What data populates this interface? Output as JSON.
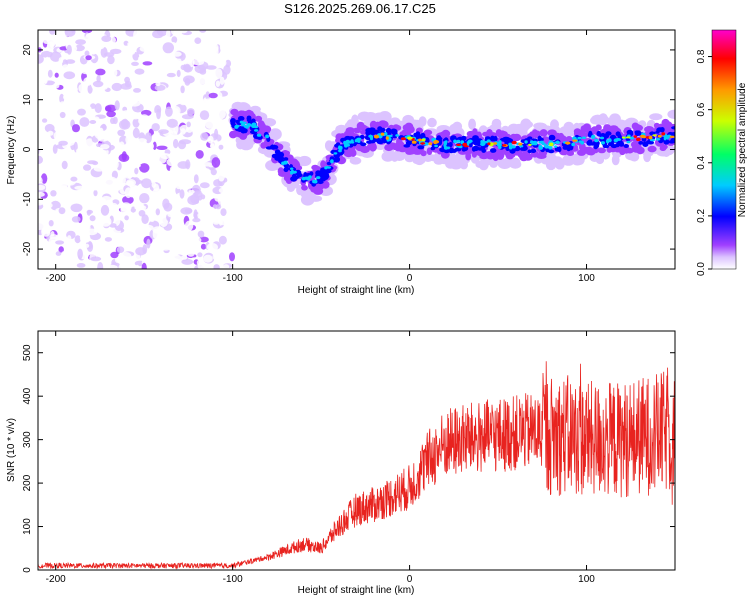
{
  "title": "S126.2025.269.06.17.C25",
  "chart_data": [
    {
      "type": "heatmap",
      "xlabel": "Height of straight line (km)",
      "ylabel": "Frequency (Hz)",
      "xlim": [
        -210,
        150
      ],
      "ylim": [
        -24,
        24
      ],
      "xticks": [
        -200,
        -100,
        0,
        100
      ],
      "yticks": [
        -20,
        -10,
        0,
        10,
        20
      ],
      "colorbar": {
        "label": "Normalized spectral amplitude",
        "range": [
          0.0,
          0.9
        ],
        "ticks": [
          "0.0",
          "0.2",
          "0.4",
          "0.6",
          "0.8"
        ],
        "colors": [
          "#ffffff",
          "#dcc3ff",
          "#a040ff",
          "#0000ff",
          "#00ccff",
          "#00ff66",
          "#ccff00",
          "#ff9900",
          "#ff0000",
          "#ff00cc"
        ]
      },
      "ridge": {
        "x": [
          -100,
          -90,
          -80,
          -75,
          -70,
          -65,
          -60,
          -55,
          -50,
          -45,
          -40,
          -30,
          -20,
          0,
          20,
          40,
          60,
          80,
          100,
          120,
          150
        ],
        "y": [
          5,
          5,
          2,
          -1,
          -3,
          -5,
          -6,
          -6,
          -6,
          -3,
          0,
          2,
          3,
          2,
          1,
          1,
          1,
          1,
          2,
          2,
          3
        ]
      },
      "noise_region_x": [
        -210,
        -100
      ]
    },
    {
      "type": "line",
      "xlabel": "Height of straight line (km)",
      "ylabel": "SNR (10 * v/v)",
      "xlim": [
        -210,
        150
      ],
      "ylim": [
        0,
        550
      ],
      "xticks": [
        -200,
        -100,
        0,
        100
      ],
      "yticks": [
        0,
        100,
        200,
        300,
        400,
        500
      ],
      "color": "#e8231f",
      "envelope": {
        "x": [
          -210,
          -150,
          -100,
          -80,
          -60,
          -50,
          -40,
          -30,
          -20,
          -10,
          0,
          10,
          20,
          30,
          50,
          70,
          80,
          90,
          100,
          120,
          150
        ],
        "y": [
          10,
          10,
          10,
          30,
          60,
          50,
          100,
          140,
          150,
          170,
          190,
          250,
          290,
          300,
          310,
          320,
          310,
          310,
          300,
          300,
          320
        ]
      }
    }
  ]
}
